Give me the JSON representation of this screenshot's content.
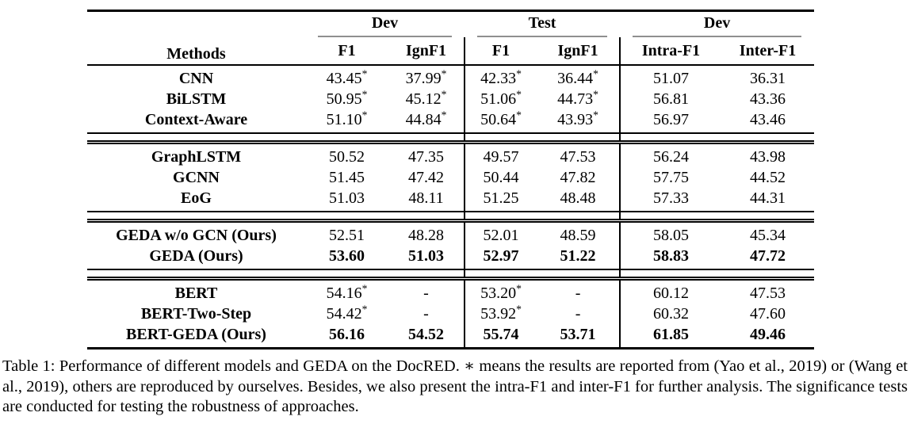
{
  "table": {
    "header": {
      "methods": "Methods",
      "groups": [
        {
          "label": "Dev",
          "sub": [
            "F1",
            "IgnF1"
          ]
        },
        {
          "label": "Test",
          "sub": [
            "F1",
            "IgnF1"
          ]
        },
        {
          "label": "Dev",
          "sub": [
            "Intra-F1",
            "Inter-F1"
          ]
        }
      ]
    },
    "blocks": [
      {
        "rows": [
          {
            "method": "CNN",
            "values": [
              "43.45*",
              "37.99*",
              "42.33*",
              "36.44*",
              "51.07",
              "36.31"
            ]
          },
          {
            "method": "BiLSTM",
            "values": [
              "50.95*",
              "45.12*",
              "51.06*",
              "44.73*",
              "56.81",
              "43.36"
            ]
          },
          {
            "method": "Context-Aware",
            "values": [
              "51.10*",
              "44.84*",
              "50.64*",
              "43.93*",
              "56.97",
              "43.46"
            ]
          }
        ]
      },
      {
        "rows": [
          {
            "method": "GraphLSTM",
            "values": [
              "50.52",
              "47.35",
              "49.57",
              "47.53",
              "56.24",
              "43.98"
            ]
          },
          {
            "method": "GCNN",
            "values": [
              "51.45",
              "47.42",
              "50.44",
              "47.82",
              "57.75",
              "44.52"
            ]
          },
          {
            "method": "EoG",
            "values": [
              "51.03",
              "48.11",
              "51.25",
              "48.48",
              "57.33",
              "44.31"
            ]
          }
        ]
      },
      {
        "rows": [
          {
            "method": "GEDA w/o GCN (Ours)",
            "values": [
              "52.51",
              "48.28",
              "52.01",
              "48.59",
              "58.05",
              "45.34"
            ]
          },
          {
            "method": "GEDA (Ours)",
            "values": [
              "53.60",
              "51.03",
              "52.97",
              "51.22",
              "58.83",
              "47.72"
            ],
            "bold": true
          }
        ]
      },
      {
        "rows": [
          {
            "method": "BERT",
            "values": [
              "54.16*",
              "-",
              "53.20*",
              "-",
              "60.12",
              "47.53"
            ]
          },
          {
            "method": "BERT-Two-Step",
            "values": [
              "54.42*",
              "-",
              "53.92*",
              "-",
              "60.32",
              "47.60"
            ]
          },
          {
            "method": "BERT-GEDA (Ours)",
            "values": [
              "56.16",
              "54.52",
              "55.74",
              "53.71",
              "61.85",
              "49.46"
            ],
            "bold": true
          }
        ]
      }
    ]
  },
  "caption": {
    "text": "Table 1: Performance of different models and GEDA on the DocRED. ∗ means the results are reported from (Yao et al., 2019) or (Wang et al., 2019), others are reproduced by ourselves. Besides, we also present the intra-F1 and inter-F1 for further analysis. The significance tests are conducted for testing the robustness of approaches."
  },
  "colors": {
    "text": "#000000",
    "background": "#ffffff",
    "rule": "#000000",
    "cmidrule": "#8f8f8f"
  }
}
